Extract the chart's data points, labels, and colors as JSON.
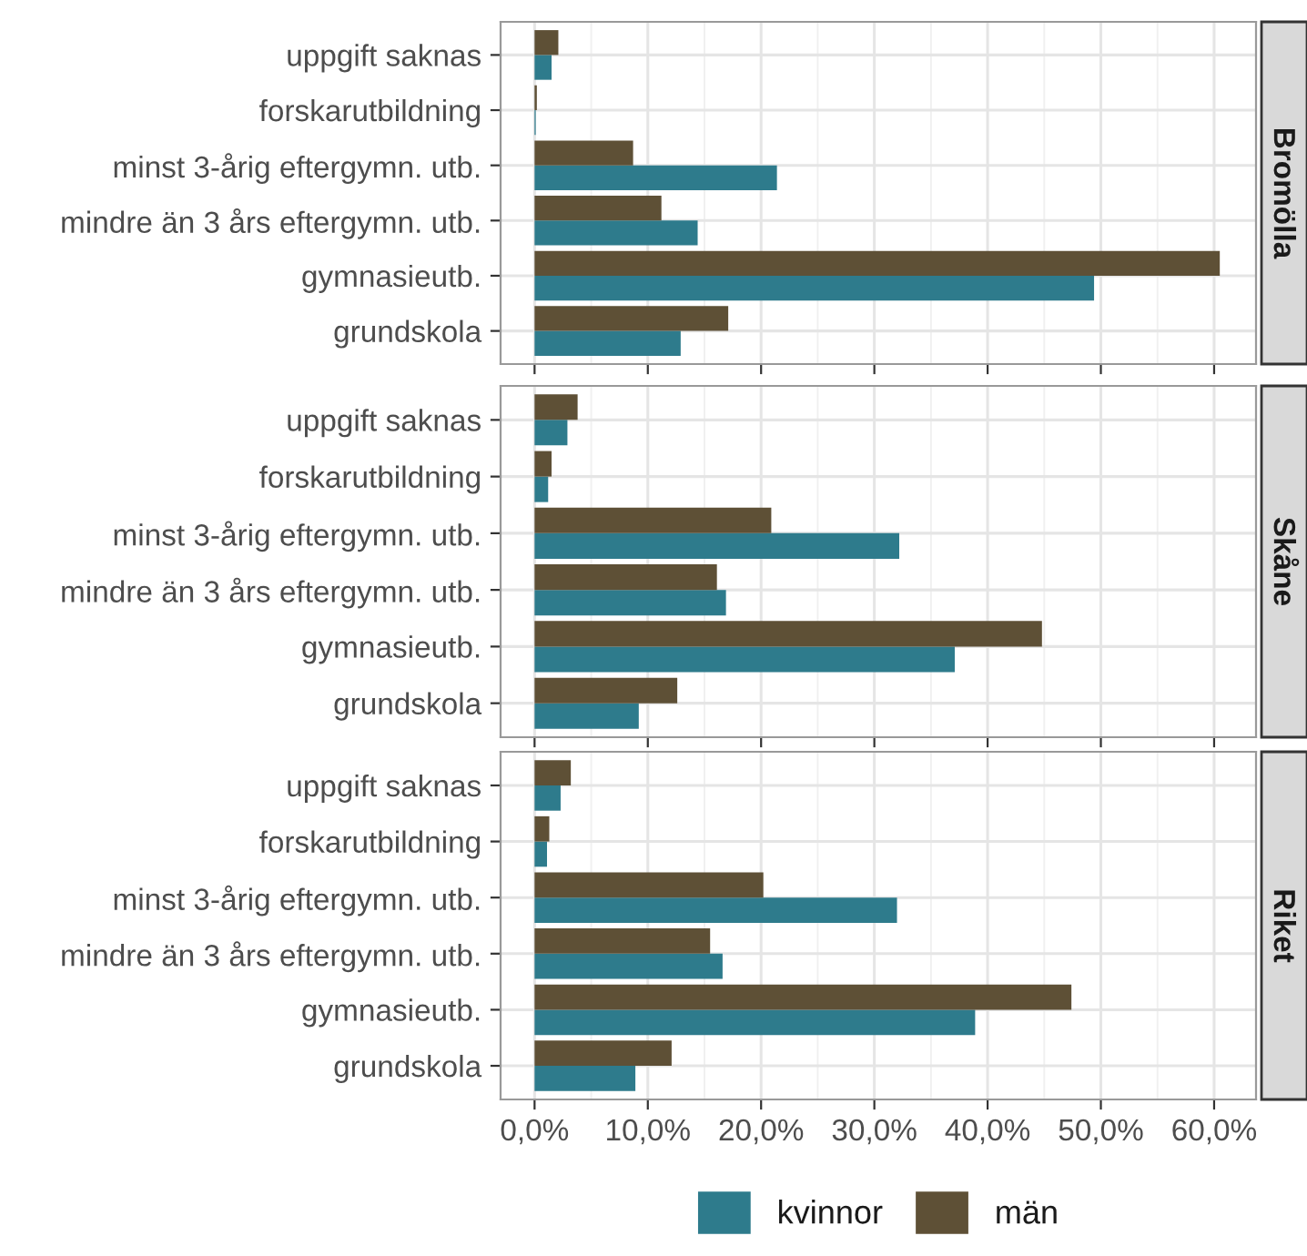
{
  "chart_data": [
    {
      "type": "bar",
      "orientation": "horizontal",
      "ylabel": "Bromölla",
      "categories": [
        "uppgift saknas",
        "forskarutbildning",
        "minst 3-årig eftergymn. utb.",
        "mindre än 3 års eftergymn. utb.",
        "gymnasieutb.",
        "grundskola"
      ],
      "series": [
        {
          "color": "#2e7b8c",
          "values": [
            1.5,
            0.1,
            21.4,
            14.4,
            49.4,
            12.9
          ]
        },
        {
          "color": "#5e5036",
          "values": [
            2.1,
            0.2,
            8.7,
            11.2,
            60.5,
            17.1
          ]
        }
      ],
      "xlim": [
        -3.0,
        63.7
      ],
      "xticks": [
        0,
        10,
        20,
        30,
        40,
        50,
        60
      ],
      "tick_labels": "y",
      "grid": true
    },
    {
      "type": "bar",
      "orientation": "horizontal",
      "ylabel": "Skåne",
      "categories": [
        "uppgift saknas",
        "forskarutbildning",
        "minst 3-årig eftergymn. utb.",
        "mindre än 3 års eftergymn. utb.",
        "gymnasieutb.",
        "grundskola"
      ],
      "series": [
        {
          "color": "#2e7b8c",
          "values": [
            2.9,
            1.2,
            32.2,
            16.9,
            37.1,
            9.2
          ]
        },
        {
          "color": "#5e5036",
          "values": [
            3.8,
            1.5,
            20.9,
            16.1,
            44.8,
            12.6
          ]
        }
      ],
      "xlim": [
        -3.0,
        63.7
      ],
      "xticks": [
        0,
        10,
        20,
        30,
        40,
        50,
        60
      ],
      "tick_labels": "y",
      "grid": true
    },
    {
      "type": "bar",
      "orientation": "horizontal",
      "ylabel": "Riket",
      "categories": [
        "uppgift saknas",
        "forskarutbildning",
        "minst 3-årig eftergymn. utb.",
        "mindre än 3 års eftergymn. utb.",
        "gymnasieutb.",
        "grundskola"
      ],
      "series": [
        {
          "name": "kvinnor",
          "color": "#2e7b8c",
          "values": [
            2.3,
            1.1,
            32.0,
            16.6,
            38.9,
            8.9
          ]
        },
        {
          "name": "män",
          "color": "#5e5036",
          "values": [
            3.2,
            1.3,
            20.2,
            15.5,
            47.4,
            12.1
          ]
        }
      ],
      "xlim": [
        -3.0,
        63.7
      ],
      "xticks": [
        {
          "value": 0,
          "label": "0,0%"
        },
        {
          "value": 10,
          "label": "10,0%"
        },
        {
          "value": 20,
          "label": "20,0%"
        },
        {
          "value": 30,
          "label": "30,0%"
        },
        {
          "value": 40,
          "label": "40,0%"
        },
        {
          "value": 50,
          "label": "50,0%"
        },
        {
          "value": 60,
          "label": "60,0%"
        }
      ],
      "grid": true,
      "legend": "bottom"
    }
  ]
}
